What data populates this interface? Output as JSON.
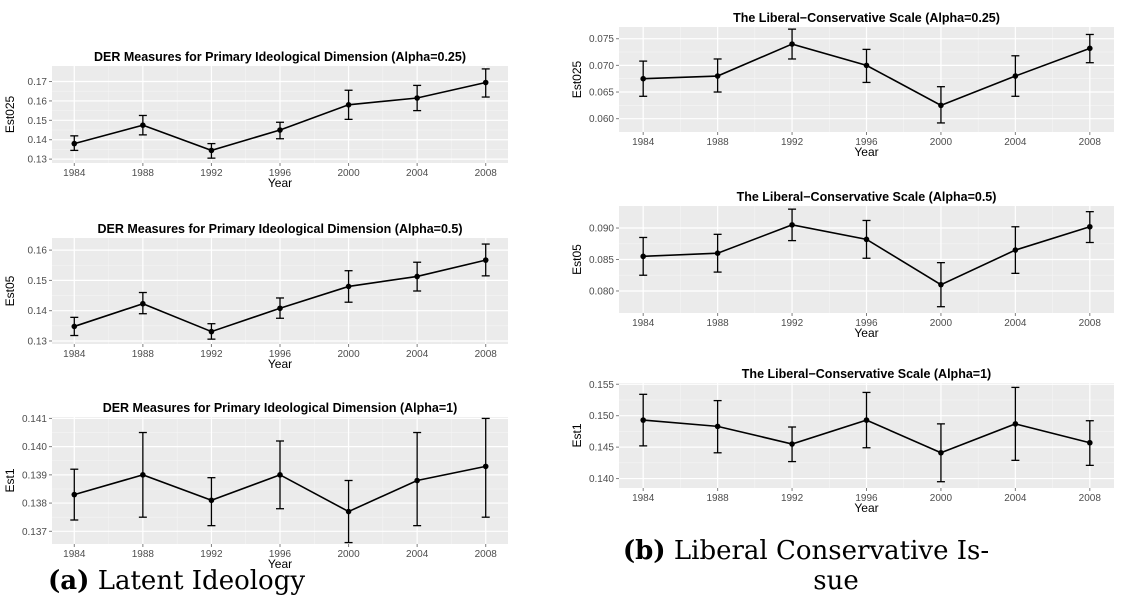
{
  "captions": {
    "a_tag": "(a)",
    "a_text": "Latent Ideology",
    "b_tag": "(b)",
    "b_text_line1": "Liberal Conservative Is-",
    "b_text_line2": "sue"
  },
  "chart_data": [
    {
      "type": "line",
      "title": "DER Measures for Primary Ideological Dimension (Alpha=0.25)",
      "xlabel": "Year",
      "ylabel": "Est025",
      "x": [
        1984,
        1988,
        1992,
        1996,
        2000,
        2004,
        2008
      ],
      "y": [
        0.138,
        0.1475,
        0.1345,
        0.145,
        0.158,
        0.1615,
        0.1695
      ],
      "lower": [
        0.1345,
        0.1425,
        0.1305,
        0.1405,
        0.1505,
        0.155,
        0.162
      ],
      "upper": [
        0.142,
        0.1525,
        0.138,
        0.149,
        0.1655,
        0.168,
        0.1765
      ],
      "ylim": [
        0.128,
        0.178
      ],
      "yticks": [
        0.13,
        0.14,
        0.15,
        0.16,
        0.17
      ],
      "ytick_labels": [
        "0.13",
        "0.14",
        "0.15",
        "0.16",
        "0.17"
      ],
      "xticks": [
        1984,
        1988,
        1992,
        1996,
        2000,
        2004,
        2008
      ],
      "grid": true
    },
    {
      "type": "line",
      "title": "DER Measures for Primary Ideological Dimension (Alpha=0.5)",
      "xlabel": "Year",
      "ylabel": "Est05",
      "x": [
        1984,
        1988,
        1992,
        1996,
        2000,
        2004,
        2008
      ],
      "y": [
        0.1348,
        0.1423,
        0.1331,
        0.1408,
        0.148,
        0.1513,
        0.1567
      ],
      "lower": [
        0.1318,
        0.139,
        0.1306,
        0.1375,
        0.1428,
        0.1465,
        0.1515
      ],
      "upper": [
        0.1378,
        0.146,
        0.1357,
        0.1442,
        0.1532,
        0.156,
        0.162
      ],
      "ylim": [
        0.129,
        0.164
      ],
      "yticks": [
        0.13,
        0.14,
        0.15,
        0.16
      ],
      "ytick_labels": [
        "0.13",
        "0.14",
        "0.15",
        "0.16"
      ],
      "xticks": [
        1984,
        1988,
        1992,
        1996,
        2000,
        2004,
        2008
      ],
      "grid": true
    },
    {
      "type": "line",
      "title": "DER Measures for Primary Ideological Dimension (Alpha=1)",
      "xlabel": "Year",
      "ylabel": "Est1",
      "x": [
        1984,
        1988,
        1992,
        1996,
        2000,
        2004,
        2008
      ],
      "y": [
        0.1383,
        0.139,
        0.1381,
        0.139,
        0.1377,
        0.1388,
        0.1393
      ],
      "lower": [
        0.1374,
        0.1375,
        0.1372,
        0.1378,
        0.1366,
        0.1372,
        0.1375
      ],
      "upper": [
        0.1392,
        0.1405,
        0.1389,
        0.1402,
        0.1388,
        0.1405,
        0.141
      ],
      "ylim": [
        0.13655,
        0.14105
      ],
      "yticks": [
        0.137,
        0.138,
        0.139,
        0.14,
        0.141
      ],
      "ytick_labels": [
        "0.137",
        "0.138",
        "0.139",
        "0.140",
        "0.141"
      ],
      "xticks": [
        1984,
        1988,
        1992,
        1996,
        2000,
        2004,
        2008
      ],
      "grid": true
    },
    {
      "type": "line",
      "title": "The Liberal−Conservative Scale (Alpha=0.25)",
      "xlabel": "Year",
      "ylabel": "Est025",
      "x": [
        1984,
        1988,
        1992,
        1996,
        2000,
        2004,
        2008
      ],
      "y": [
        0.0675,
        0.068,
        0.074,
        0.07,
        0.0625,
        0.068,
        0.0732
      ],
      "lower": [
        0.0642,
        0.065,
        0.0712,
        0.0668,
        0.0592,
        0.0642,
        0.0705
      ],
      "upper": [
        0.0708,
        0.0712,
        0.0768,
        0.073,
        0.066,
        0.0718,
        0.0758
      ],
      "ylim": [
        0.0575,
        0.0772
      ],
      "yticks": [
        0.06,
        0.065,
        0.07,
        0.075
      ],
      "ytick_labels": [
        "0.060",
        "0.065",
        "0.070",
        "0.075"
      ],
      "xticks": [
        1984,
        1988,
        1992,
        1996,
        2000,
        2004,
        2008
      ],
      "grid": true
    },
    {
      "type": "line",
      "title": "The Liberal−Conservative Scale (Alpha=0.5)",
      "xlabel": "Year",
      "ylabel": "Est05",
      "x": [
        1984,
        1988,
        1992,
        1996,
        2000,
        2004,
        2008
      ],
      "y": [
        0.0855,
        0.086,
        0.0905,
        0.0882,
        0.081,
        0.0865,
        0.0902
      ],
      "lower": [
        0.0825,
        0.083,
        0.088,
        0.0852,
        0.0775,
        0.0828,
        0.0877
      ],
      "upper": [
        0.0885,
        0.089,
        0.093,
        0.0912,
        0.0845,
        0.0902,
        0.0926
      ],
      "ylim": [
        0.0765,
        0.0935
      ],
      "yticks": [
        0.08,
        0.085,
        0.09
      ],
      "ytick_labels": [
        "0.080",
        "0.085",
        "0.090"
      ],
      "xticks": [
        1984,
        1988,
        1992,
        1996,
        2000,
        2004,
        2008
      ],
      "grid": true
    },
    {
      "type": "line",
      "title": "The Liberal−Conservative Scale (Alpha=1)",
      "xlabel": "Year",
      "ylabel": "Est1",
      "x": [
        1984,
        1988,
        1992,
        1996,
        2000,
        2004,
        2008
      ],
      "y": [
        0.1493,
        0.1483,
        0.1455,
        0.1493,
        0.1441,
        0.1487,
        0.1457
      ],
      "lower": [
        0.1452,
        0.1441,
        0.1427,
        0.1449,
        0.1395,
        0.1429,
        0.1421
      ],
      "upper": [
        0.1534,
        0.1524,
        0.1482,
        0.1537,
        0.1487,
        0.1545,
        0.1492
      ],
      "ylim": [
        0.1385,
        0.1552
      ],
      "yticks": [
        0.14,
        0.145,
        0.15,
        0.155
      ],
      "ytick_labels": [
        "0.140",
        "0.145",
        "0.150",
        "0.155"
      ],
      "xticks": [
        1984,
        1988,
        1992,
        1996,
        2000,
        2004,
        2008
      ],
      "grid": true
    }
  ]
}
